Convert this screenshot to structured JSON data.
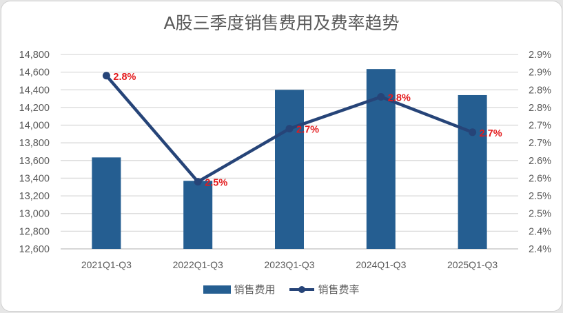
{
  "chart_data": {
    "type": "bar+line",
    "title": "A股三季度销售费用及费率趋势",
    "categories": [
      "2021Q1-Q3",
      "2022Q1-Q3",
      "2023Q1-Q3",
      "2024Q1-Q3",
      "2025Q1-Q3"
    ],
    "series": [
      {
        "name": "销售费用",
        "type": "bar",
        "axis": "left",
        "color": "#255e91",
        "values": [
          13635,
          13370,
          14400,
          14635,
          14340
        ]
      },
      {
        "name": "销售费率",
        "type": "line",
        "axis": "right",
        "color": "#264478",
        "values": [
          2.84,
          2.54,
          2.69,
          2.78,
          2.68
        ],
        "data_labels": [
          "2.8%",
          "2.5%",
          "2.7%",
          "2.8%",
          "2.7%"
        ],
        "label_color": "#e31a1c"
      }
    ],
    "y_left": {
      "min": 12600,
      "max": 14800,
      "step": 200,
      "ticks": [
        "14,800",
        "14,600",
        "14,400",
        "14,200",
        "14,000",
        "13,800",
        "13,600",
        "13,400",
        "13,200",
        "13,000",
        "12,800",
        "12,600"
      ]
    },
    "y_right": {
      "min": 2.35,
      "max": 2.9,
      "step": 0.05,
      "ticks": [
        "2.9%",
        "2.9%",
        "2.8%",
        "2.8%",
        "2.7%",
        "2.7%",
        "2.6%",
        "2.6%",
        "2.5%",
        "2.5%",
        "2.4%",
        "2.4%"
      ]
    },
    "grid": true,
    "legend_position": "bottom",
    "xlabel": "",
    "ylabel": ""
  },
  "legend": {
    "bar_label": "销售费用",
    "line_label": "销售费率"
  }
}
